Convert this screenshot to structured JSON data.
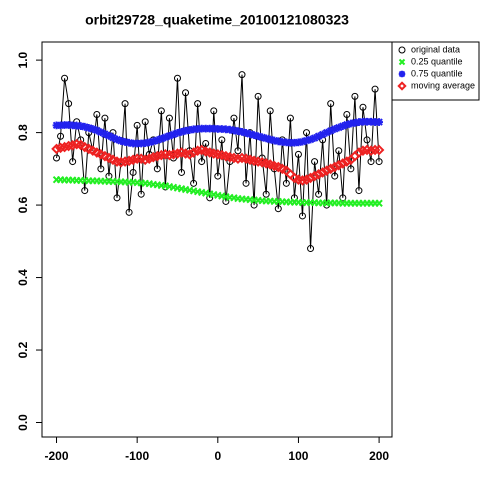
{
  "chart_data": {
    "type": "scatter",
    "title": "orbit29728_quaketime_20100121080323",
    "x": [
      -200,
      -195,
      -190,
      -185,
      -180,
      -175,
      -170,
      -165,
      -160,
      -155,
      -150,
      -145,
      -140,
      -135,
      -130,
      -125,
      -120,
      -115,
      -110,
      -105,
      -100,
      -95,
      -90,
      -85,
      -80,
      -75,
      -70,
      -65,
      -60,
      -55,
      -50,
      -45,
      -40,
      -35,
      -30,
      -25,
      -20,
      -15,
      -10,
      -5,
      0,
      5,
      10,
      15,
      20,
      25,
      30,
      35,
      40,
      45,
      50,
      55,
      60,
      65,
      70,
      75,
      80,
      85,
      90,
      95,
      100,
      105,
      110,
      115,
      120,
      125,
      130,
      135,
      140,
      145,
      150,
      155,
      160,
      165,
      170,
      175,
      180,
      185,
      190,
      195,
      200
    ],
    "series": [
      {
        "name": "original data",
        "color": "#000000",
        "marker": "circle",
        "line": true,
        "values": [
          0.73,
          0.79,
          0.95,
          0.88,
          0.72,
          0.83,
          0.78,
          0.64,
          0.8,
          0.75,
          0.85,
          0.7,
          0.84,
          0.68,
          0.8,
          0.62,
          0.72,
          0.88,
          0.58,
          0.69,
          0.82,
          0.63,
          0.83,
          0.74,
          0.78,
          0.7,
          0.86,
          0.65,
          0.84,
          0.73,
          0.95,
          0.69,
          0.91,
          0.75,
          0.66,
          0.88,
          0.72,
          0.77,
          0.62,
          0.86,
          0.68,
          0.78,
          0.61,
          0.72,
          0.84,
          0.75,
          0.96,
          0.66,
          0.8,
          0.6,
          0.9,
          0.73,
          0.63,
          0.86,
          0.7,
          0.59,
          0.78,
          0.66,
          0.84,
          0.62,
          0.74,
          0.57,
          0.8,
          0.48,
          0.72,
          0.63,
          0.78,
          0.6,
          0.88,
          0.68,
          0.75,
          0.62,
          0.85,
          0.7,
          0.9,
          0.64,
          0.87,
          0.78,
          0.72,
          0.92,
          0.72
        ]
      },
      {
        "name": "0.25 quantile",
        "color": "#22ee22",
        "marker": "x",
        "line": false,
        "values": [
          0.67,
          0.67,
          0.669,
          0.669,
          0.669,
          0.668,
          0.668,
          0.668,
          0.667,
          0.667,
          0.667,
          0.666,
          0.666,
          0.665,
          0.665,
          0.665,
          0.664,
          0.664,
          0.663,
          0.663,
          0.662,
          0.661,
          0.66,
          0.659,
          0.657,
          0.656,
          0.654,
          0.653,
          0.651,
          0.649,
          0.647,
          0.645,
          0.643,
          0.641,
          0.639,
          0.637,
          0.635,
          0.633,
          0.631,
          0.629,
          0.627,
          0.625,
          0.623,
          0.621,
          0.62,
          0.618,
          0.617,
          0.616,
          0.615,
          0.614,
          0.613,
          0.612,
          0.611,
          0.611,
          0.61,
          0.61,
          0.609,
          0.609,
          0.608,
          0.608,
          0.608,
          0.607,
          0.607,
          0.607,
          0.607,
          0.606,
          0.606,
          0.606,
          0.606,
          0.606,
          0.606,
          0.605,
          0.605,
          0.605,
          0.605,
          0.605,
          0.605,
          0.605,
          0.605,
          0.605,
          0.605
        ]
      },
      {
        "name": "0.75 quantile",
        "color": "#2222ee",
        "marker": "asterisk",
        "line": false,
        "values": [
          0.82,
          0.82,
          0.821,
          0.821,
          0.82,
          0.819,
          0.818,
          0.816,
          0.813,
          0.81,
          0.806,
          0.801,
          0.796,
          0.791,
          0.786,
          0.781,
          0.777,
          0.774,
          0.772,
          0.77,
          0.77,
          0.77,
          0.771,
          0.773,
          0.776,
          0.779,
          0.783,
          0.787,
          0.791,
          0.795,
          0.799,
          0.802,
          0.805,
          0.807,
          0.809,
          0.81,
          0.811,
          0.811,
          0.811,
          0.811,
          0.81,
          0.81,
          0.809,
          0.808,
          0.806,
          0.804,
          0.802,
          0.799,
          0.796,
          0.793,
          0.79,
          0.787,
          0.784,
          0.781,
          0.778,
          0.776,
          0.774,
          0.773,
          0.772,
          0.772,
          0.773,
          0.775,
          0.778,
          0.781,
          0.785,
          0.79,
          0.795,
          0.8,
          0.805,
          0.81,
          0.814,
          0.818,
          0.822,
          0.825,
          0.827,
          0.829,
          0.83,
          0.83,
          0.83,
          0.829,
          0.829
        ]
      },
      {
        "name": "moving average",
        "color": "#ee2222",
        "marker": "diamond",
        "line": false,
        "values": [
          0.755,
          0.758,
          0.76,
          0.763,
          0.765,
          0.768,
          0.766,
          0.76,
          0.755,
          0.75,
          0.745,
          0.74,
          0.735,
          0.73,
          0.725,
          0.72,
          0.718,
          0.72,
          0.722,
          0.725,
          0.728,
          0.728,
          0.725,
          0.728,
          0.732,
          0.735,
          0.738,
          0.74,
          0.738,
          0.74,
          0.742,
          0.745,
          0.742,
          0.74,
          0.745,
          0.75,
          0.752,
          0.748,
          0.745,
          0.742,
          0.74,
          0.738,
          0.735,
          0.732,
          0.73,
          0.728,
          0.73,
          0.728,
          0.725,
          0.722,
          0.72,
          0.718,
          0.715,
          0.712,
          0.708,
          0.705,
          0.7,
          0.695,
          0.685,
          0.675,
          0.67,
          0.668,
          0.67,
          0.675,
          0.68,
          0.685,
          0.69,
          0.695,
          0.7,
          0.705,
          0.71,
          0.715,
          0.72,
          0.725,
          0.735,
          0.745,
          0.75,
          0.752,
          0.75,
          0.752,
          0.752
        ]
      }
    ],
    "xlim": [
      -218,
      216
    ],
    "ylim": [
      -0.04,
      1.05
    ],
    "xticks": [
      -200,
      -100,
      0,
      100,
      200
    ],
    "yticks": [
      {
        "value": 0,
        "label": "0.0"
      },
      0.2,
      0.4,
      0.6,
      0.8,
      {
        "value": 1,
        "label": "1.0"
      }
    ],
    "legend": "top-right"
  }
}
